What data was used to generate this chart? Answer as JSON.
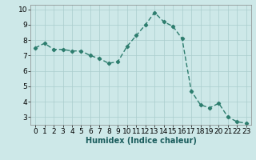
{
  "x": [
    0,
    1,
    2,
    3,
    4,
    5,
    6,
    7,
    8,
    9,
    10,
    11,
    12,
    13,
    14,
    15,
    16,
    17,
    18,
    19,
    20,
    21,
    22,
    23
  ],
  "y": [
    7.5,
    7.8,
    7.4,
    7.4,
    7.3,
    7.3,
    7.0,
    6.8,
    6.5,
    6.6,
    7.6,
    8.3,
    9.0,
    9.8,
    9.2,
    8.9,
    8.1,
    4.7,
    3.8,
    3.6,
    3.9,
    3.0,
    2.7,
    2.6
  ],
  "line_color": "#2d7d6e",
  "marker": "D",
  "marker_size": 2.2,
  "bg_color": "#cde8e8",
  "grid_color": "#aacccc",
  "xlabel": "Humidex (Indice chaleur)",
  "xlim": [
    -0.5,
    23.5
  ],
  "ylim": [
    2.5,
    10.3
  ],
  "yticks": [
    3,
    4,
    5,
    6,
    7,
    8,
    9,
    10
  ],
  "xticks": [
    0,
    1,
    2,
    3,
    4,
    5,
    6,
    7,
    8,
    9,
    10,
    11,
    12,
    13,
    14,
    15,
    16,
    17,
    18,
    19,
    20,
    21,
    22,
    23
  ],
  "xlabel_fontsize": 7,
  "tick_fontsize": 6.5,
  "line_width": 1.0
}
